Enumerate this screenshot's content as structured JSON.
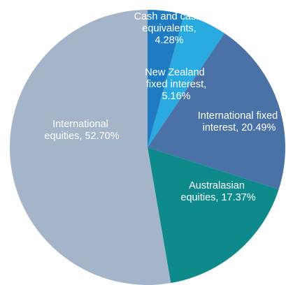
{
  "chart_data": {
    "type": "pie",
    "values": [
      4.28,
      5.16,
      20.49,
      17.37,
      52.7
    ],
    "value_labels": [
      "Cash and cash equivalents, 4.28%",
      "New Zealand fixed interest, 5.16%",
      "International fixed interest, 20.49%",
      "Australasian equities, 17.37%",
      "International equities, 52.70%"
    ],
    "colors": [
      "#1f7cc2",
      "#29aae1",
      "#4a72a6",
      "#0f8a8c",
      "#a4b5c9"
    ]
  }
}
